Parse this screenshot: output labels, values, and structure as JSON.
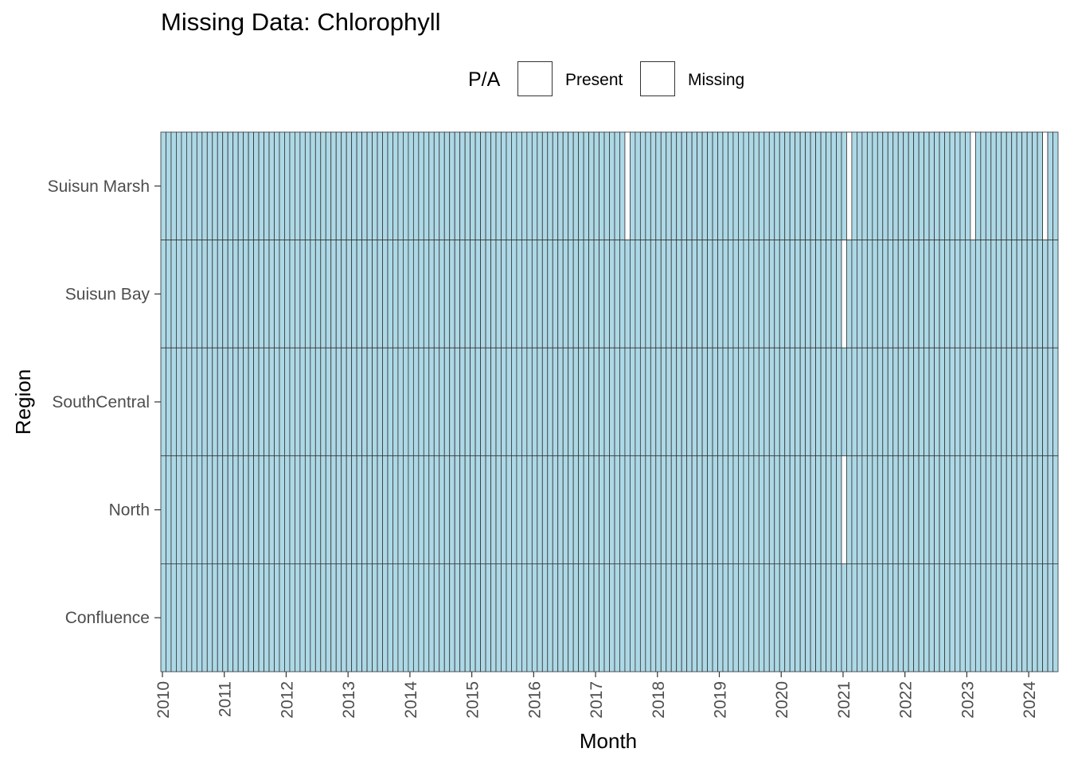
{
  "chart_data": {
    "type": "heatmap",
    "title": "Missing Data: Chlorophyll",
    "xlabel": "Month",
    "ylabel": "Region",
    "legend": {
      "title": "P/A",
      "position": "top",
      "entries": [
        {
          "label": "Present",
          "color": "#add8e6"
        },
        {
          "label": "Missing",
          "color": "#ffffff"
        }
      ]
    },
    "x_range": [
      "2010-01",
      "2024-06"
    ],
    "x_ticks": [
      "2010",
      "2011",
      "2012",
      "2013",
      "2014",
      "2015",
      "2016",
      "2017",
      "2018",
      "2019",
      "2020",
      "2021",
      "2022",
      "2023",
      "2024"
    ],
    "regions": [
      "Suisun Marsh",
      "Suisun Bay",
      "SouthCentral",
      "North",
      "Confluence"
    ],
    "default_value": "Present",
    "missing": [
      {
        "region": "Suisun Marsh",
        "months": [
          "2017-07",
          "2021-02",
          "2023-02",
          "2024-04"
        ]
      },
      {
        "region": "Suisun Bay",
        "months": [
          "2021-01"
        ]
      },
      {
        "region": "SouthCentral",
        "months": []
      },
      {
        "region": "North",
        "months": [
          "2021-01"
        ]
      },
      {
        "region": "Confluence",
        "months": []
      }
    ],
    "grid": false
  }
}
